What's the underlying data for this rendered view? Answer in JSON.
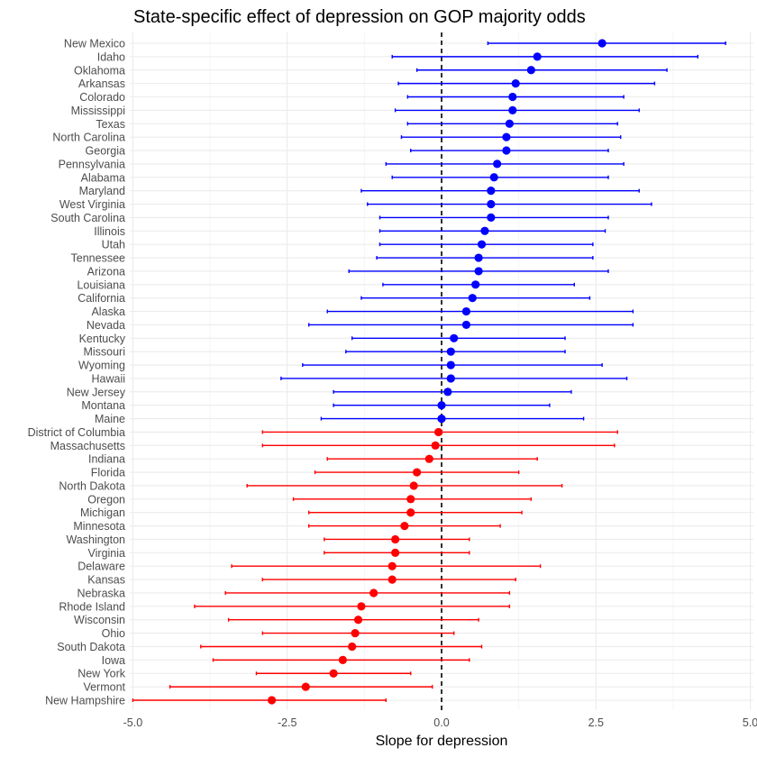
{
  "chart_data": {
    "type": "scatter",
    "title": "State-specific effect of depression on GOP majority odds",
    "xlabel": "Slope for depression",
    "ylabel": "",
    "xlim": [
      -5.05,
      5.05
    ],
    "xticks": [
      -5.0,
      -2.5,
      0.0,
      2.5,
      5.0
    ],
    "xtick_labels": [
      "-5.0",
      "-2.5",
      "0.0",
      "2.5",
      "5.0"
    ],
    "reference_line": 0,
    "grid": true,
    "colors": {
      "positive": "#0000ff",
      "negative": "#ff0000",
      "grid_major": "#ebebeb",
      "grid_minor": "#f5f5f5"
    },
    "points": [
      {
        "state": "New Mexico",
        "estimate": 2.6,
        "lower": 0.75,
        "upper": 4.6
      },
      {
        "state": "Idaho",
        "estimate": 1.55,
        "lower": -0.8,
        "upper": 4.15
      },
      {
        "state": "Oklahoma",
        "estimate": 1.45,
        "lower": -0.4,
        "upper": 3.65
      },
      {
        "state": "Arkansas",
        "estimate": 1.2,
        "lower": -0.7,
        "upper": 3.45
      },
      {
        "state": "Colorado",
        "estimate": 1.15,
        "lower": -0.55,
        "upper": 2.95
      },
      {
        "state": "Mississippi",
        "estimate": 1.15,
        "lower": -0.75,
        "upper": 3.2
      },
      {
        "state": "Texas",
        "estimate": 1.1,
        "lower": -0.55,
        "upper": 2.85
      },
      {
        "state": "North Carolina",
        "estimate": 1.05,
        "lower": -0.65,
        "upper": 2.9
      },
      {
        "state": "Georgia",
        "estimate": 1.05,
        "lower": -0.5,
        "upper": 2.7
      },
      {
        "state": "Pennsylvania",
        "estimate": 0.9,
        "lower": -0.9,
        "upper": 2.95
      },
      {
        "state": "Alabama",
        "estimate": 0.85,
        "lower": -0.8,
        "upper": 2.7
      },
      {
        "state": "Maryland",
        "estimate": 0.8,
        "lower": -1.3,
        "upper": 3.2
      },
      {
        "state": "West Virginia",
        "estimate": 0.8,
        "lower": -1.2,
        "upper": 3.4
      },
      {
        "state": "South Carolina",
        "estimate": 0.8,
        "lower": -1.0,
        "upper": 2.7
      },
      {
        "state": "Illinois",
        "estimate": 0.7,
        "lower": -1.0,
        "upper": 2.65
      },
      {
        "state": "Utah",
        "estimate": 0.65,
        "lower": -1.0,
        "upper": 2.45
      },
      {
        "state": "Tennessee",
        "estimate": 0.6,
        "lower": -1.05,
        "upper": 2.45
      },
      {
        "state": "Arizona",
        "estimate": 0.6,
        "lower": -1.5,
        "upper": 2.7
      },
      {
        "state": "Louisiana",
        "estimate": 0.55,
        "lower": -0.95,
        "upper": 2.15
      },
      {
        "state": "California",
        "estimate": 0.5,
        "lower": -1.3,
        "upper": 2.4
      },
      {
        "state": "Alaska",
        "estimate": 0.4,
        "lower": -1.85,
        "upper": 3.1
      },
      {
        "state": "Nevada",
        "estimate": 0.4,
        "lower": -2.15,
        "upper": 3.1
      },
      {
        "state": "Kentucky",
        "estimate": 0.2,
        "lower": -1.45,
        "upper": 2.0
      },
      {
        "state": "Missouri",
        "estimate": 0.15,
        "lower": -1.55,
        "upper": 2.0
      },
      {
        "state": "Wyoming",
        "estimate": 0.15,
        "lower": -2.25,
        "upper": 2.6
      },
      {
        "state": "Hawaii",
        "estimate": 0.15,
        "lower": -2.6,
        "upper": 3.0
      },
      {
        "state": "New Jersey",
        "estimate": 0.1,
        "lower": -1.75,
        "upper": 2.1
      },
      {
        "state": "Montana",
        "estimate": 0.0,
        "lower": -1.75,
        "upper": 1.75
      },
      {
        "state": "Maine",
        "estimate": 0.0,
        "lower": -1.95,
        "upper": 2.3
      },
      {
        "state": "District of Columbia",
        "estimate": -0.05,
        "lower": -2.9,
        "upper": 2.85
      },
      {
        "state": "Massachusetts",
        "estimate": -0.1,
        "lower": -2.9,
        "upper": 2.8
      },
      {
        "state": "Indiana",
        "estimate": -0.2,
        "lower": -1.85,
        "upper": 1.55
      },
      {
        "state": "Florida",
        "estimate": -0.4,
        "lower": -2.05,
        "upper": 1.25
      },
      {
        "state": "North Dakota",
        "estimate": -0.45,
        "lower": -3.15,
        "upper": 1.95
      },
      {
        "state": "Oregon",
        "estimate": -0.5,
        "lower": -2.4,
        "upper": 1.45
      },
      {
        "state": "Michigan",
        "estimate": -0.5,
        "lower": -2.15,
        "upper": 1.3
      },
      {
        "state": "Minnesota",
        "estimate": -0.6,
        "lower": -2.15,
        "upper": 0.95
      },
      {
        "state": "Washington",
        "estimate": -0.75,
        "lower": -1.9,
        "upper": 0.45
      },
      {
        "state": "Virginia",
        "estimate": -0.75,
        "lower": -1.9,
        "upper": 0.45
      },
      {
        "state": "Delaware",
        "estimate": -0.8,
        "lower": -3.4,
        "upper": 1.6
      },
      {
        "state": "Kansas",
        "estimate": -0.8,
        "lower": -2.9,
        "upper": 1.2
      },
      {
        "state": "Nebraska",
        "estimate": -1.1,
        "lower": -3.5,
        "upper": 1.1
      },
      {
        "state": "Rhode Island",
        "estimate": -1.3,
        "lower": -4.0,
        "upper": 1.1
      },
      {
        "state": "Wisconsin",
        "estimate": -1.35,
        "lower": -3.45,
        "upper": 0.6
      },
      {
        "state": "Ohio",
        "estimate": -1.4,
        "lower": -2.9,
        "upper": 0.2
      },
      {
        "state": "South Dakota",
        "estimate": -1.45,
        "lower": -3.9,
        "upper": 0.65
      },
      {
        "state": "Iowa",
        "estimate": -1.6,
        "lower": -3.7,
        "upper": 0.45
      },
      {
        "state": "New York",
        "estimate": -1.75,
        "lower": -3.0,
        "upper": -0.5
      },
      {
        "state": "Vermont",
        "estimate": -2.2,
        "lower": -4.4,
        "upper": -0.15
      },
      {
        "state": "New Hampshire",
        "estimate": -2.75,
        "lower": -5.0,
        "upper": -0.9
      }
    ]
  }
}
